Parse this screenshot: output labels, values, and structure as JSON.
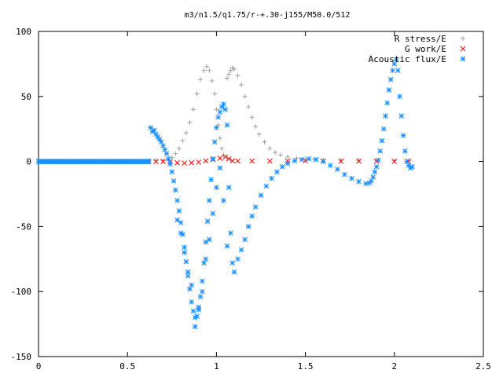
{
  "chart_data": {
    "type": "scatter",
    "title": "m3/n1.5/q1.75/r-+.30-j155/M50.0/512",
    "xlabel": "",
    "ylabel": "",
    "xlim": [
      0,
      2.5
    ],
    "ylim": [
      -150,
      100
    ],
    "x_ticks": [
      "0",
      "0.5",
      "1",
      "1.5",
      "2",
      "2.5"
    ],
    "y_ticks": [
      "100",
      "50",
      "0",
      "-50",
      "-100",
      "-150"
    ],
    "legend_position": "top-right",
    "grid": false,
    "series": [
      {
        "name": "R stress/E",
        "marker": "plus",
        "color": "#a0a0a0",
        "points": [
          [
            0.62,
            0.5
          ],
          [
            0.66,
            0.6
          ],
          [
            0.7,
            0.8
          ],
          [
            0.73,
            1.5
          ],
          [
            0.75,
            3
          ],
          [
            0.77,
            6
          ],
          [
            0.79,
            10
          ],
          [
            0.81,
            16
          ],
          [
            0.83,
            22
          ],
          [
            0.85,
            30
          ],
          [
            0.87,
            40
          ],
          [
            0.89,
            52
          ],
          [
            0.91,
            63
          ],
          [
            0.93,
            70
          ],
          [
            0.945,
            73
          ],
          [
            0.96,
            70
          ],
          [
            0.975,
            62
          ],
          [
            0.99,
            52
          ],
          [
            1.0,
            40
          ],
          [
            1.01,
            28
          ],
          [
            1.02,
            18
          ],
          [
            1.03,
            10
          ],
          [
            1.04,
            5
          ],
          [
            1.06,
            64
          ],
          [
            1.07,
            67
          ],
          [
            1.08,
            70
          ],
          [
            1.09,
            72
          ],
          [
            1.1,
            71
          ],
          [
            1.12,
            66
          ],
          [
            1.14,
            59
          ],
          [
            1.16,
            50
          ],
          [
            1.18,
            42
          ],
          [
            1.2,
            34
          ],
          [
            1.22,
            27
          ],
          [
            1.24,
            21
          ],
          [
            1.27,
            15
          ],
          [
            1.3,
            10
          ],
          [
            1.33,
            7
          ],
          [
            1.36,
            5
          ],
          [
            1.4,
            3.5
          ],
          [
            1.45,
            2.5
          ],
          [
            1.5,
            2
          ],
          [
            1.55,
            1.5
          ],
          [
            1.6,
            1.2
          ],
          [
            1.7,
            1
          ],
          [
            1.8,
            0.9
          ],
          [
            1.9,
            0.8
          ],
          [
            2.0,
            0.7
          ],
          [
            2.08,
            0.6
          ]
        ]
      },
      {
        "name": "G work/E",
        "marker": "cross",
        "color": "#ff0000",
        "points": [
          [
            0.62,
            0
          ],
          [
            0.66,
            0
          ],
          [
            0.7,
            0
          ],
          [
            0.74,
            -0.3
          ],
          [
            0.78,
            -1
          ],
          [
            0.82,
            -1.2
          ],
          [
            0.86,
            -1
          ],
          [
            0.9,
            -0.5
          ],
          [
            0.94,
            0.5
          ],
          [
            0.98,
            1.5
          ],
          [
            1.02,
            2.5
          ],
          [
            1.05,
            3.5
          ],
          [
            1.07,
            2
          ],
          [
            1.09,
            0.5
          ],
          [
            1.12,
            0.3
          ],
          [
            1.2,
            0.3
          ],
          [
            1.3,
            0.3
          ],
          [
            1.4,
            0.4
          ],
          [
            1.5,
            0.4
          ],
          [
            1.6,
            0.3
          ],
          [
            1.7,
            0.2
          ],
          [
            1.8,
            0.2
          ],
          [
            1.9,
            0.2
          ],
          [
            2.0,
            0.1
          ],
          [
            2.08,
            0.1
          ]
        ]
      },
      {
        "name": "Acoustic flux/E",
        "marker": "star",
        "color": "#1e90ff",
        "points": [
          [
            0.0,
            0
          ],
          [
            0.62,
            0
          ],
          [
            0.63,
            26
          ],
          [
            0.64,
            23
          ],
          [
            0.65,
            24
          ],
          [
            0.66,
            21
          ],
          [
            0.67,
            19
          ],
          [
            0.68,
            17
          ],
          [
            0.69,
            15
          ],
          [
            0.7,
            12
          ],
          [
            0.71,
            9
          ],
          [
            0.72,
            6
          ],
          [
            0.73,
            2
          ],
          [
            0.74,
            -2
          ],
          [
            0.75,
            -8
          ],
          [
            0.76,
            -15
          ],
          [
            0.77,
            -22
          ],
          [
            0.78,
            -30
          ],
          [
            0.79,
            -38
          ],
          [
            0.8,
            -47
          ],
          [
            0.81,
            -56
          ],
          [
            0.82,
            -66
          ],
          [
            0.83,
            -77
          ],
          [
            0.84,
            -88
          ],
          [
            0.85,
            -98
          ],
          [
            0.86,
            -108
          ],
          [
            0.87,
            -115
          ],
          [
            0.88,
            -120
          ],
          [
            0.89,
            -119
          ],
          [
            0.9,
            -114
          ],
          [
            0.91,
            -104
          ],
          [
            0.92,
            -92
          ],
          [
            0.93,
            -78
          ],
          [
            0.94,
            -62
          ],
          [
            0.95,
            -46
          ],
          [
            0.96,
            -30
          ],
          [
            0.97,
            -14
          ],
          [
            0.98,
            2
          ],
          [
            0.99,
            15
          ],
          [
            1.0,
            26
          ],
          [
            1.01,
            34
          ],
          [
            1.02,
            38
          ],
          [
            1.03,
            42
          ],
          [
            1.04,
            44
          ],
          [
            1.05,
            40
          ],
          [
            1.06,
            28
          ],
          [
            1.07,
            -20
          ],
          [
            1.08,
            -55
          ],
          [
            1.09,
            -78
          ],
          [
            1.1,
            -85
          ],
          [
            0.78,
            -45
          ],
          [
            0.8,
            -55
          ],
          [
            0.82,
            -70
          ],
          [
            0.84,
            -85
          ],
          [
            0.86,
            -95
          ],
          [
            0.88,
            -127
          ],
          [
            0.9,
            -112
          ],
          [
            0.92,
            -100
          ],
          [
            0.94,
            -75
          ],
          [
            0.96,
            -60
          ],
          [
            0.98,
            -40
          ],
          [
            1.0,
            -20
          ],
          [
            1.02,
            -5
          ],
          [
            1.04,
            -30
          ],
          [
            1.06,
            -65
          ],
          [
            1.12,
            -75
          ],
          [
            1.14,
            -68
          ],
          [
            1.16,
            -60
          ],
          [
            1.18,
            -50
          ],
          [
            1.2,
            -42
          ],
          [
            1.22,
            -35
          ],
          [
            1.25,
            -26
          ],
          [
            1.28,
            -19
          ],
          [
            1.31,
            -13
          ],
          [
            1.34,
            -8
          ],
          [
            1.37,
            -4
          ],
          [
            1.4,
            -1.5
          ],
          [
            1.44,
            0.5
          ],
          [
            1.48,
            1.5
          ],
          [
            1.52,
            2
          ],
          [
            1.56,
            1.5
          ],
          [
            1.6,
            0
          ],
          [
            1.64,
            -3
          ],
          [
            1.68,
            -6
          ],
          [
            1.72,
            -10
          ],
          [
            1.76,
            -13
          ],
          [
            1.8,
            -15.5
          ],
          [
            1.84,
            -17
          ],
          [
            1.86,
            -16.5
          ],
          [
            1.87,
            -15
          ],
          [
            1.88,
            -12
          ],
          [
            1.89,
            -8
          ],
          [
            1.9,
            -4
          ],
          [
            1.91,
            1
          ],
          [
            1.92,
            8
          ],
          [
            1.93,
            16
          ],
          [
            1.94,
            25
          ],
          [
            1.95,
            35
          ],
          [
            1.96,
            45
          ],
          [
            1.97,
            55
          ],
          [
            1.98,
            63
          ],
          [
            1.99,
            70
          ],
          [
            2.0,
            75
          ],
          [
            2.01,
            78
          ],
          [
            2.02,
            70
          ],
          [
            2.03,
            50
          ],
          [
            2.04,
            35
          ],
          [
            2.05,
            20
          ],
          [
            2.06,
            8
          ],
          [
            2.07,
            0
          ],
          [
            2.08,
            -3
          ],
          [
            2.09,
            -5
          ],
          [
            2.1,
            -4
          ]
        ]
      }
    ]
  }
}
